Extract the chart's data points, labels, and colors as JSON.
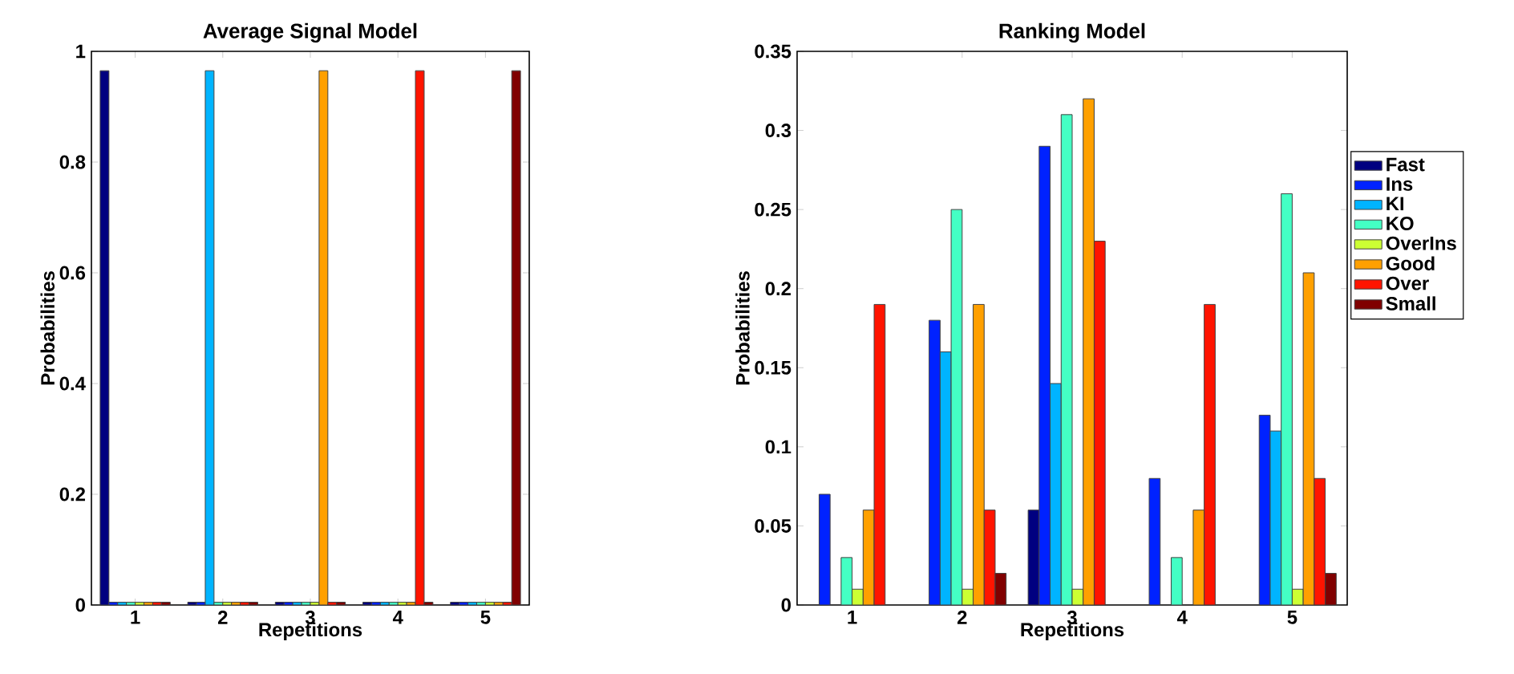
{
  "chart_data": [
    {
      "type": "bar",
      "title": "Average Signal Model",
      "xlabel": "Repetitions",
      "ylabel": "Probabilities",
      "categories": [
        "1",
        "2",
        "3",
        "4",
        "5"
      ],
      "ylim": [
        0,
        1
      ],
      "yticks": [
        0,
        0.2,
        0.4,
        0.6,
        0.8,
        1
      ],
      "series": [
        {
          "color": "#000080",
          "values": [
            0.965,
            0.005,
            0.005,
            0.005,
            0.005
          ]
        },
        {
          "color": "#0022ff",
          "values": [
            0.005,
            0.005,
            0.005,
            0.005,
            0.005
          ]
        },
        {
          "color": "#00b4ff",
          "values": [
            0.005,
            0.965,
            0.005,
            0.005,
            0.005
          ]
        },
        {
          "color": "#44ffc4",
          "values": [
            0.005,
            0.005,
            0.005,
            0.005,
            0.005
          ]
        },
        {
          "color": "#ccff33",
          "values": [
            0.005,
            0.005,
            0.005,
            0.005,
            0.005
          ]
        },
        {
          "color": "#ffa000",
          "values": [
            0.005,
            0.005,
            0.965,
            0.005,
            0.005
          ]
        },
        {
          "color": "#ff1400",
          "values": [
            0.005,
            0.005,
            0.005,
            0.965,
            0.005
          ]
        },
        {
          "color": "#800000",
          "values": [
            0.005,
            0.005,
            0.005,
            0.005,
            0.965
          ]
        }
      ]
    },
    {
      "type": "bar",
      "title": "Ranking Model",
      "xlabel": "Repetitions",
      "ylabel": "Probabilities",
      "categories": [
        "1",
        "2",
        "3",
        "4",
        "5"
      ],
      "ylim": [
        0,
        0.35
      ],
      "yticks": [
        0,
        0.05,
        0.1,
        0.15,
        0.2,
        0.25,
        0.3,
        0.35
      ],
      "legend": "right",
      "series": [
        {
          "name": "Fast",
          "color": "#000080",
          "values": [
            null,
            null,
            0.06,
            null,
            null
          ]
        },
        {
          "name": "Ins",
          "color": "#0022ff",
          "values": [
            0.07,
            0.18,
            0.29,
            0.08,
            0.12
          ]
        },
        {
          "name": "KI",
          "color": "#00b4ff",
          "values": [
            null,
            0.16,
            0.14,
            null,
            0.11
          ]
        },
        {
          "name": "KO",
          "color": "#44ffc4",
          "values": [
            0.03,
            0.25,
            0.31,
            0.03,
            0.26
          ]
        },
        {
          "name": "OverIns",
          "color": "#ccff33",
          "values": [
            0.01,
            0.01,
            0.01,
            null,
            0.01
          ]
        },
        {
          "name": "Good",
          "color": "#ffa000",
          "values": [
            0.06,
            0.19,
            0.32,
            0.06,
            0.21
          ]
        },
        {
          "name": "Over",
          "color": "#ff1400",
          "values": [
            0.19,
            0.06,
            0.23,
            0.19,
            0.08
          ]
        },
        {
          "name": "Small",
          "color": "#800000",
          "values": [
            null,
            0.02,
            null,
            null,
            0.02
          ]
        }
      ]
    }
  ]
}
